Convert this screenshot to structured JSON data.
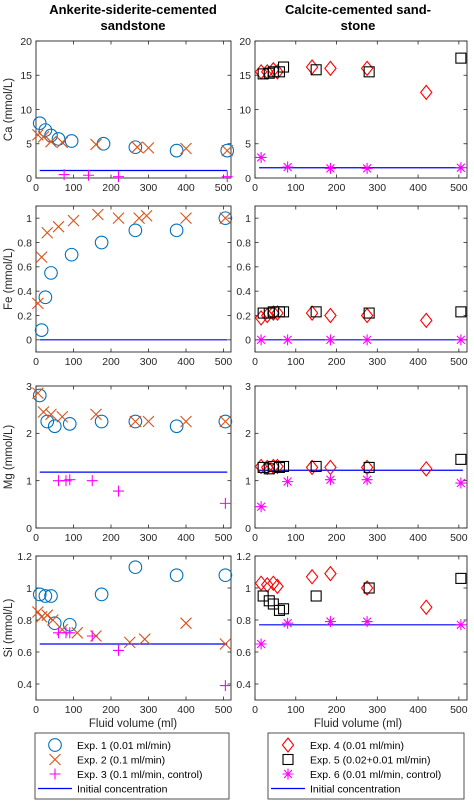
{
  "figure": {
    "col_titles": [
      [
        "Ankerite-siderite-cemented",
        "sandstone"
      ],
      [
        "Calcite-cemented sand-",
        "stone"
      ]
    ],
    "xlabel": "Fluid volume (ml)"
  },
  "legends": [
    [
      {
        "label": "Exp. 1 (0.01 ml/min)",
        "marker": "circle",
        "color": "#0072BD"
      },
      {
        "label": "Exp. 2 (0.1 ml/min)",
        "marker": "x",
        "color": "#D95319"
      },
      {
        "label": "Exp. 3 (0.1 ml/min, control)",
        "marker": "plus",
        "color": "#FF00FF"
      },
      {
        "label": "Initial concentration",
        "marker": "line",
        "color": "#0000FF"
      }
    ],
    [
      {
        "label": "Exp. 4 (0.01 ml/min)",
        "marker": "diamond",
        "color": "#FF0000"
      },
      {
        "label": "Exp. 5 (0.02+0.01 ml/min)",
        "marker": "square",
        "color": "#000000"
      },
      {
        "label": "Exp. 6 (0.01 ml/min, control)",
        "marker": "star",
        "color": "#FF00FF"
      },
      {
        "label": "Initial concentration",
        "marker": "line",
        "color": "#0000FF"
      }
    ]
  ],
  "chart_data": [
    {
      "type": "scatter",
      "panel": "Ca-left",
      "ylabel": "Ca (mmol/L)",
      "xlim": [
        0,
        520
      ],
      "ylim": [
        0,
        20
      ],
      "yticks": [
        0,
        5,
        10,
        15,
        20
      ],
      "xticks": [
        0,
        100,
        200,
        300,
        400,
        500
      ],
      "initial": 1.1,
      "series": [
        {
          "name": "Exp. 1 (0.01 ml/min)",
          "marker": "circle",
          "color": "#0072BD",
          "x": [
            10,
            25,
            40,
            60,
            95,
            180,
            265,
            375,
            510
          ],
          "y": [
            8.0,
            7.0,
            6.2,
            5.7,
            5.4,
            5.0,
            4.5,
            4.0,
            4.0
          ]
        },
        {
          "name": "Exp. 2 (0.1 ml/min)",
          "marker": "x",
          "color": "#D95319",
          "x": [
            5,
            20,
            40,
            70,
            160,
            270,
            300,
            400,
            510
          ],
          "y": [
            6.3,
            6.0,
            5.3,
            5.2,
            4.9,
            4.5,
            4.4,
            4.3,
            4.0
          ]
        },
        {
          "name": "Exp. 3 (0.1 ml/min, control)",
          "marker": "plus",
          "color": "#FF00FF",
          "x": [
            75,
            140,
            220,
            510
          ],
          "y": [
            0.5,
            0.4,
            0.2,
            0.2
          ]
        }
      ]
    },
    {
      "type": "scatter",
      "panel": "Ca-right",
      "ylabel": "",
      "xlim": [
        0,
        520
      ],
      "ylim": [
        0,
        20
      ],
      "yticks": [
        0,
        5,
        10,
        15,
        20
      ],
      "xticks": [
        0,
        100,
        200,
        300,
        400,
        500
      ],
      "initial": 1.5,
      "series": [
        {
          "name": "Exp. 4 (0.01 ml/min)",
          "marker": "diamond",
          "color": "#FF0000",
          "x": [
            15,
            30,
            45,
            55,
            140,
            185,
            275,
            420
          ],
          "y": [
            15.5,
            15.5,
            15.8,
            15.5,
            16.2,
            16.0,
            16.0,
            12.5
          ]
        },
        {
          "name": "Exp. 5 (0.02+0.01 ml/min)",
          "marker": "square",
          "color": "#000000",
          "x": [
            20,
            35,
            45,
            60,
            70,
            150,
            280,
            505
          ],
          "y": [
            15.2,
            15.3,
            15.5,
            15.5,
            16.2,
            15.8,
            15.5,
            17.5
          ]
        },
        {
          "name": "Exp. 6 (0.01 ml/min, control)",
          "marker": "star",
          "color": "#FF00FF",
          "x": [
            15,
            80,
            185,
            275,
            505
          ],
          "y": [
            3.0,
            1.6,
            1.4,
            1.4,
            1.5
          ]
        }
      ]
    },
    {
      "type": "scatter",
      "panel": "Fe-left",
      "ylabel": "Fe (mmol/L)",
      "xlim": [
        0,
        520
      ],
      "ylim": [
        -0.1,
        1.1
      ],
      "yticks": [
        0,
        0.2,
        0.4,
        0.6,
        0.8,
        1
      ],
      "xticks": [
        0,
        100,
        200,
        300,
        400,
        500
      ],
      "initial": 0.0,
      "series": [
        {
          "name": "Exp. 1 (0.01 ml/min)",
          "marker": "circle",
          "color": "#0072BD",
          "x": [
            15,
            25,
            40,
            95,
            175,
            265,
            375,
            505
          ],
          "y": [
            0.08,
            0.35,
            0.55,
            0.7,
            0.8,
            0.9,
            0.9,
            1.0
          ]
        },
        {
          "name": "Exp. 2 (0.1 ml/min)",
          "marker": "x",
          "color": "#D95319",
          "x": [
            5,
            15,
            30,
            60,
            100,
            165,
            220,
            275,
            295,
            400,
            505
          ],
          "y": [
            0.3,
            0.68,
            0.88,
            0.93,
            0.98,
            1.03,
            1.0,
            1.0,
            1.02,
            1.0,
            1.0
          ]
        }
      ]
    },
    {
      "type": "scatter",
      "panel": "Fe-right",
      "ylabel": "",
      "xlim": [
        0,
        520
      ],
      "ylim": [
        -0.1,
        1.1
      ],
      "yticks": [
        0,
        0.2,
        0.4,
        0.6,
        0.8,
        1
      ],
      "xticks": [
        0,
        100,
        200,
        300,
        400,
        500
      ],
      "initial": 0.0,
      "series": [
        {
          "name": "Exp. 4 (0.01 ml/min)",
          "marker": "diamond",
          "color": "#FF0000",
          "x": [
            15,
            30,
            45,
            55,
            140,
            185,
            275,
            420
          ],
          "y": [
            0.18,
            0.2,
            0.22,
            0.22,
            0.22,
            0.2,
            0.2,
            0.16
          ]
        },
        {
          "name": "Exp. 5 (0.02+0.01 ml/min)",
          "marker": "square",
          "color": "#000000",
          "x": [
            20,
            35,
            45,
            60,
            70,
            150,
            280,
            505
          ],
          "y": [
            0.22,
            0.22,
            0.23,
            0.23,
            0.23,
            0.23,
            0.22,
            0.23
          ]
        },
        {
          "name": "Exp. 6 (0.01 ml/min, control)",
          "marker": "star",
          "color": "#FF00FF",
          "x": [
            15,
            80,
            185,
            275,
            505
          ],
          "y": [
            0.0,
            0.0,
            0.0,
            0.0,
            0.0
          ]
        }
      ]
    },
    {
      "type": "scatter",
      "panel": "Mg-left",
      "ylabel": "Mg (mmol/L)",
      "xlim": [
        0,
        520
      ],
      "ylim": [
        0,
        3
      ],
      "yticks": [
        0,
        1,
        2,
        3
      ],
      "xticks": [
        0,
        100,
        200,
        300,
        400,
        500
      ],
      "initial": 1.18,
      "series": [
        {
          "name": "Exp. 1 (0.01 ml/min)",
          "marker": "circle",
          "color": "#0072BD",
          "x": [
            10,
            30,
            50,
            90,
            175,
            265,
            375,
            505
          ],
          "y": [
            2.8,
            2.25,
            2.15,
            2.2,
            2.25,
            2.25,
            2.15,
            2.25
          ]
        },
        {
          "name": "Exp. 2 (0.1 ml/min)",
          "marker": "x",
          "color": "#D95319",
          "x": [
            5,
            20,
            40,
            70,
            160,
            265,
            300,
            400,
            505
          ],
          "y": [
            2.85,
            2.45,
            2.4,
            2.35,
            2.4,
            2.25,
            2.25,
            2.25,
            2.25
          ]
        },
        {
          "name": "Exp. 3 (0.1 ml/min, control)",
          "marker": "plus",
          "color": "#FF00FF",
          "x": [
            60,
            80,
            90,
            150,
            220,
            505
          ],
          "y": [
            1.0,
            1.0,
            1.02,
            1.0,
            0.78,
            0.52
          ]
        }
      ]
    },
    {
      "type": "scatter",
      "panel": "Mg-right",
      "ylabel": "",
      "xlim": [
        0,
        520
      ],
      "ylim": [
        0,
        3
      ],
      "yticks": [
        0,
        1,
        2,
        3
      ],
      "xticks": [
        0,
        100,
        200,
        300,
        400,
        500
      ],
      "initial": 1.22,
      "series": [
        {
          "name": "Exp. 4 (0.01 ml/min)",
          "marker": "diamond",
          "color": "#FF0000",
          "x": [
            15,
            30,
            45,
            55,
            140,
            185,
            275,
            420
          ],
          "y": [
            1.3,
            1.28,
            1.3,
            1.3,
            1.28,
            1.28,
            1.28,
            1.25
          ]
        },
        {
          "name": "Exp. 5 (0.02+0.01 ml/min)",
          "marker": "square",
          "color": "#000000",
          "x": [
            20,
            35,
            45,
            60,
            70,
            150,
            280,
            505
          ],
          "y": [
            1.28,
            1.25,
            1.3,
            1.28,
            1.3,
            1.3,
            1.28,
            1.45
          ]
        },
        {
          "name": "Exp. 6 (0.01 ml/min, control)",
          "marker": "star",
          "color": "#FF00FF",
          "x": [
            15,
            80,
            185,
            275,
            505
          ],
          "y": [
            0.45,
            0.98,
            1.02,
            1.02,
            0.95
          ]
        }
      ]
    },
    {
      "type": "scatter",
      "panel": "Si-left",
      "ylabel": "Si (mmol/L)",
      "xlim": [
        0,
        520
      ],
      "ylim": [
        0.3,
        1.2
      ],
      "yticks": [
        0.4,
        0.6,
        0.8,
        1,
        1.2
      ],
      "xticks": [
        0,
        100,
        200,
        300,
        400,
        500
      ],
      "initial": 0.65,
      "series": [
        {
          "name": "Exp. 1 (0.01 ml/min)",
          "marker": "circle",
          "color": "#0072BD",
          "x": [
            10,
            25,
            40,
            50,
            90,
            175,
            265,
            375,
            505
          ],
          "y": [
            0.96,
            0.95,
            0.95,
            0.78,
            0.77,
            0.96,
            1.13,
            1.08,
            1.08
          ]
        },
        {
          "name": "Exp. 2 (0.1 ml/min)",
          "marker": "x",
          "color": "#D95319",
          "x": [
            5,
            15,
            30,
            45,
            70,
            110,
            160,
            250,
            290,
            400,
            505
          ],
          "y": [
            0.85,
            0.82,
            0.83,
            0.8,
            0.74,
            0.72,
            0.7,
            0.66,
            0.68,
            0.78,
            0.65
          ]
        },
        {
          "name": "Exp. 3 (0.1 ml/min, control)",
          "marker": "plus",
          "color": "#FF00FF",
          "x": [
            60,
            80,
            90,
            150,
            220,
            505
          ],
          "y": [
            0.72,
            0.72,
            0.72,
            0.7,
            0.61,
            0.39
          ]
        }
      ]
    },
    {
      "type": "scatter",
      "panel": "Si-right",
      "ylabel": "",
      "xlim": [
        0,
        520
      ],
      "ylim": [
        0.3,
        1.2
      ],
      "yticks": [
        0.4,
        0.6,
        0.8,
        1,
        1.2
      ],
      "xticks": [
        0,
        100,
        200,
        300,
        400,
        500
      ],
      "initial": 0.77,
      "series": [
        {
          "name": "Exp. 4 (0.01 ml/min)",
          "marker": "diamond",
          "color": "#FF0000",
          "x": [
            15,
            30,
            45,
            55,
            140,
            185,
            275,
            420
          ],
          "y": [
            1.03,
            1.02,
            1.03,
            1.01,
            1.07,
            1.09,
            1.0,
            0.88
          ]
        },
        {
          "name": "Exp. 5 (0.02+0.01 ml/min)",
          "marker": "square",
          "color": "#000000",
          "x": [
            20,
            35,
            45,
            60,
            70,
            150,
            280,
            505
          ],
          "y": [
            0.95,
            0.92,
            0.9,
            0.86,
            0.87,
            0.95,
            1.0,
            1.06
          ]
        },
        {
          "name": "Exp. 6 (0.01 ml/min, control)",
          "marker": "star",
          "color": "#FF00FF",
          "x": [
            15,
            80,
            185,
            275,
            505
          ],
          "y": [
            0.65,
            0.78,
            0.79,
            0.79,
            0.77
          ]
        }
      ]
    }
  ]
}
